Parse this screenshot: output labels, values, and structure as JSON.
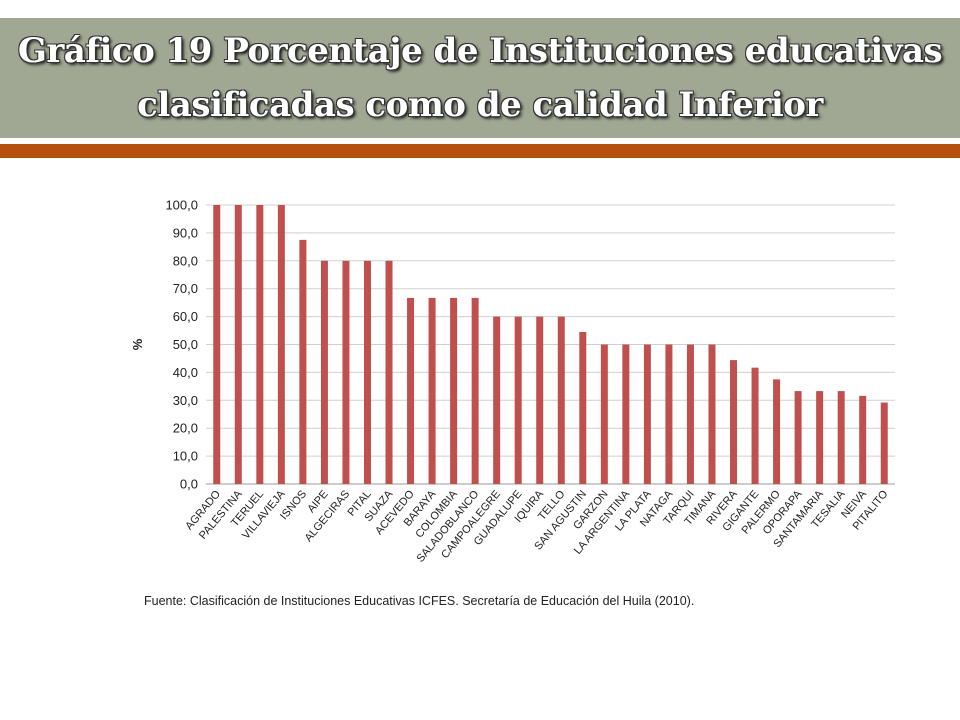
{
  "slide": {
    "title_line1": "Gráfico 19 Porcentaje de Instituciones educativas",
    "title_line2": "clasificadas como de calidad Inferior",
    "source": "Fuente: Clasificación de Instituciones Educativas ICFES. Secretaría de Educación del Huila (2010).",
    "band_color": "#a0a793",
    "accent_color": "#b5500f"
  },
  "chart_data": {
    "type": "bar",
    "title": "",
    "xlabel": "",
    "ylabel": "%",
    "ylim": [
      0,
      100
    ],
    "yticks": [
      "0,0",
      "10,0",
      "20,0",
      "30,0",
      "40,0",
      "50,0",
      "60,0",
      "70,0",
      "80,0",
      "90,0",
      "100,0"
    ],
    "grid": true,
    "legend": "none",
    "bar_color": "#c0504d",
    "categories": [
      "AGRADO",
      "PALESTINA",
      "TERUEL",
      "VILLAVIEJA",
      "ISNOS",
      "AIPE",
      "ALGECIRAS",
      "PITAL",
      "SUAZA",
      "ACEVEDO",
      "BARAYA",
      "COLOMBIA",
      "SALADOBLANCO",
      "CAMPOALEGRE",
      "GUADALUPE",
      "IQUIRA",
      "TELLO",
      "SAN AGUSTIN",
      "GARZON",
      "LA ARGENTINA",
      "LA PLATA",
      "NATAGA",
      "TARQUI",
      "TIMANA",
      "RIVERA",
      "GIGANTE",
      "PALERMO",
      "OPORAPA",
      "SANTAMARIA",
      "TESALIA",
      "NEIVA",
      "PITALITO"
    ],
    "values": [
      100,
      100,
      100,
      100,
      87.5,
      80,
      80,
      80,
      80,
      66.7,
      66.7,
      66.7,
      66.7,
      60,
      60,
      60,
      60,
      54.5,
      50,
      50,
      50,
      50,
      50,
      50,
      44.4,
      41.7,
      37.5,
      33.3,
      33.3,
      33.3,
      31.6,
      29.2
    ]
  }
}
